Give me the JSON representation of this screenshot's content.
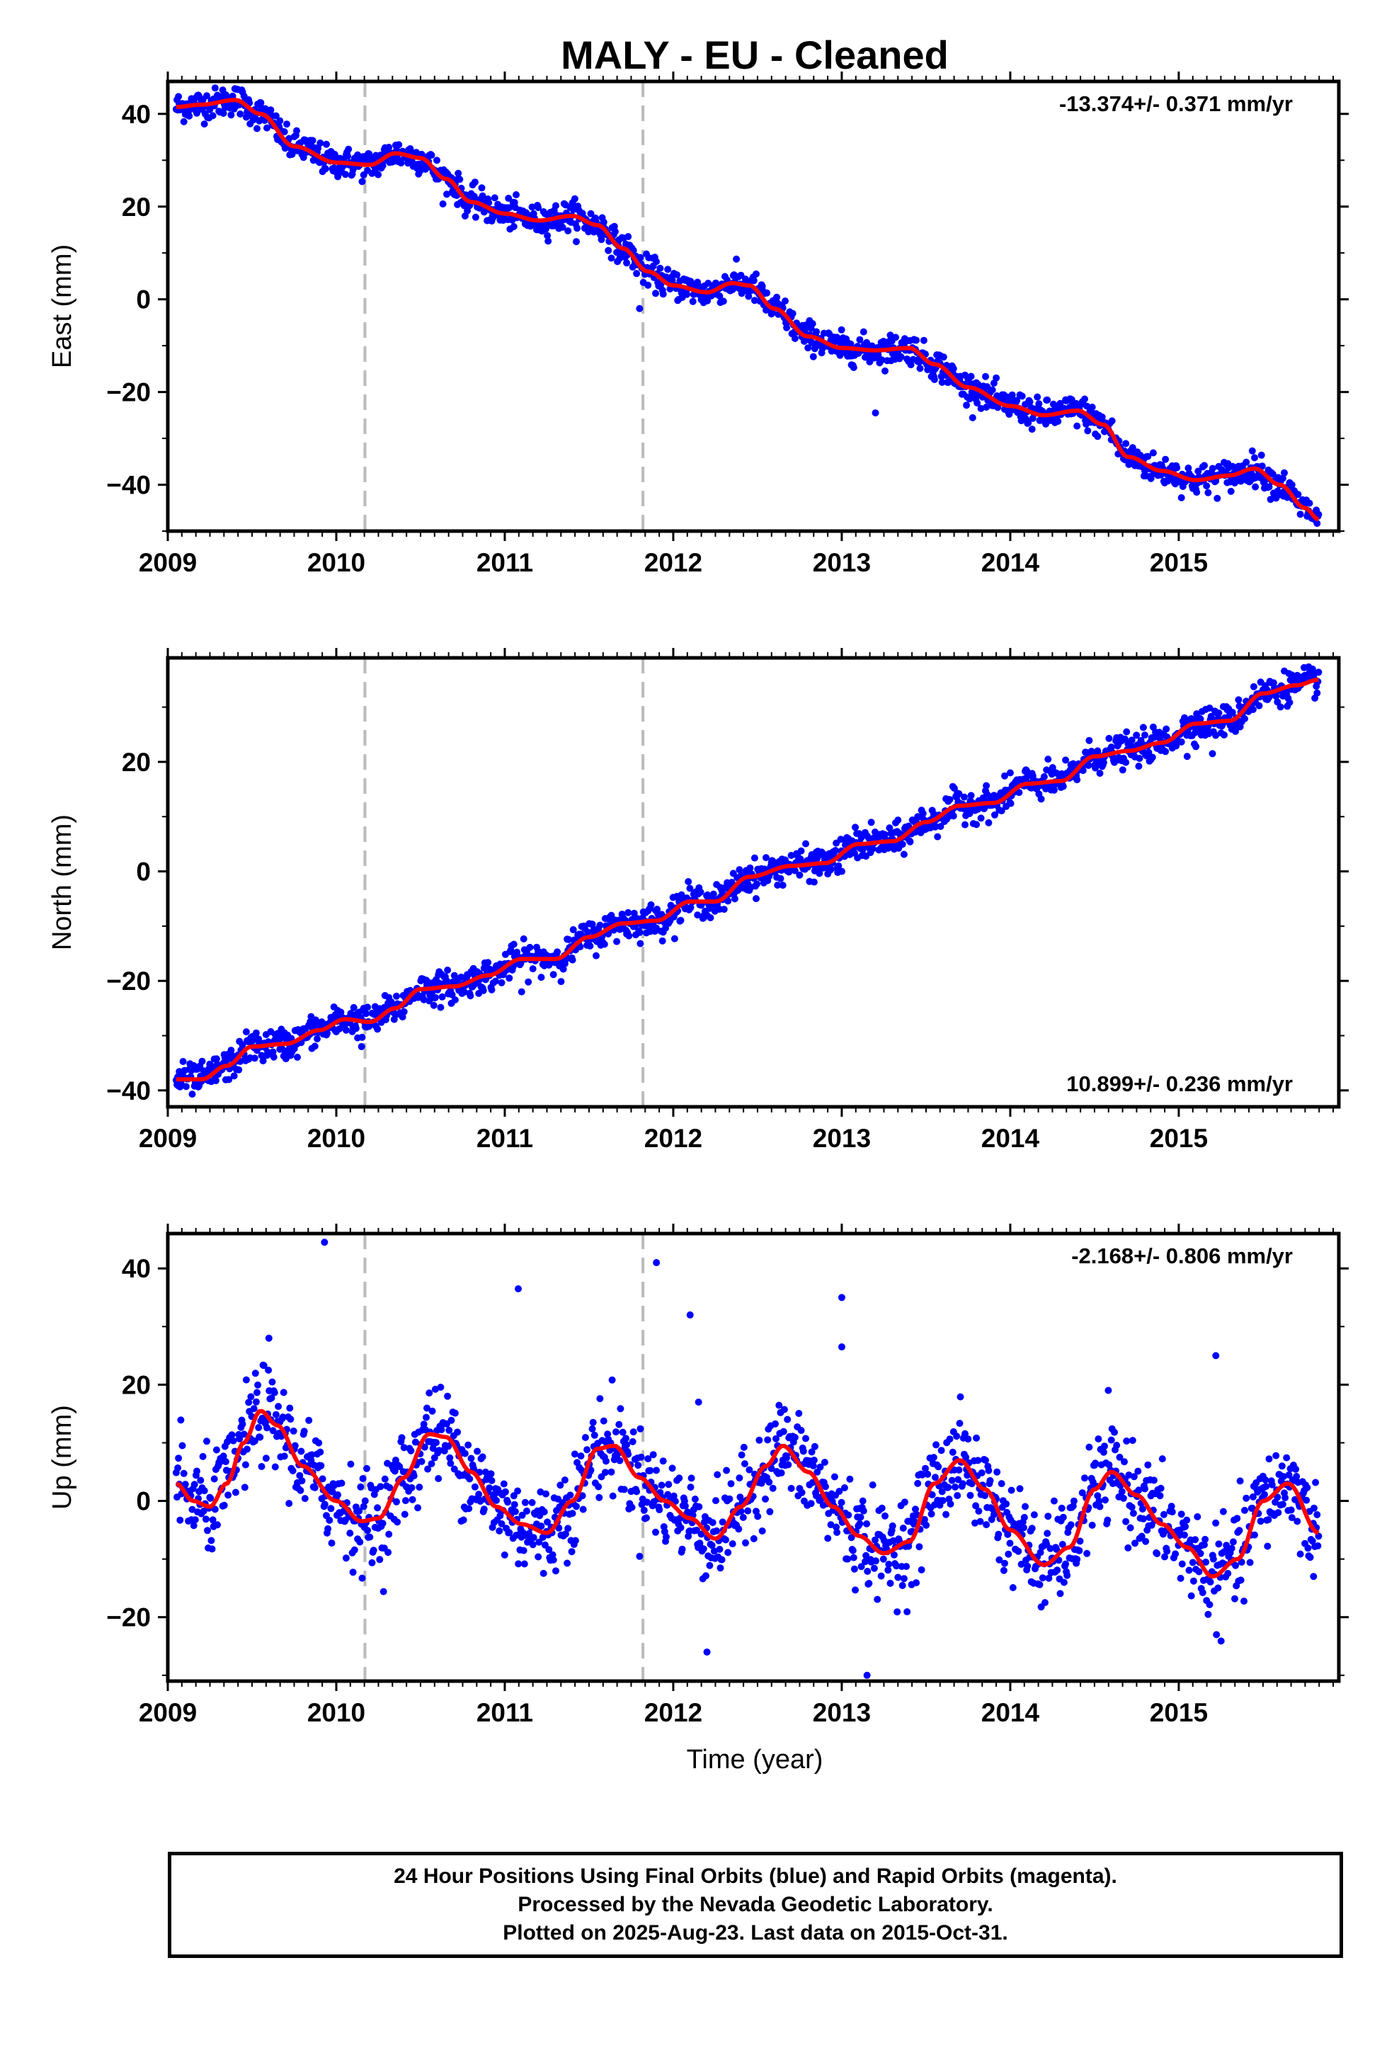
{
  "title": "MALY  - EU - Cleaned",
  "xlabel": "Time (year)",
  "x_tick_labels": [
    "2009",
    "2010",
    "2011",
    "2012",
    "2013",
    "2014",
    "2015"
  ],
  "footer": {
    "line1": "24 Hour Positions Using Final Orbits (blue) and Rapid Orbits (magenta).",
    "line2": "Processed by the Nevada Geodetic Laboratory.",
    "line3": "Plotted on 2025-Aug-23. Last data on 2015-Oct-31."
  },
  "colors": {
    "data_points": "#0000ff",
    "model_fit": "#ff0000",
    "dashed_lines": "#bbbbbb",
    "axes": "#000000"
  },
  "chart_data": [
    {
      "type": "scatter",
      "ylabel": "East (mm)",
      "rate_text": "-13.374+/- 0.371 mm/yr",
      "rate_position": "top-right",
      "xlim": [
        2009.0,
        2015.95
      ],
      "ylim": [
        -50,
        47
      ],
      "y_ticks": [
        -40,
        -20,
        0,
        20,
        40
      ],
      "y_tick_labels": [
        "−40",
        "−20",
        "0",
        "20",
        "40"
      ],
      "x_ticks": [
        2009,
        2010,
        2011,
        2012,
        2013,
        2014,
        2015
      ],
      "equipment_change_lines": [
        2010.17,
        2011.82
      ],
      "data_range": [
        2009.05,
        2015.83
      ],
      "noise_mm": 1.6,
      "outliers": [
        [
          2013.2,
          -24.5
        ],
        [
          2011.8,
          -2
        ]
      ],
      "fit": {
        "x": [
          2009.05,
          2009.2,
          2009.4,
          2009.55,
          2009.75,
          2010.0,
          2010.2,
          2010.35,
          2010.5,
          2010.65,
          2010.8,
          2011.0,
          2011.2,
          2011.4,
          2011.55,
          2011.7,
          2011.85,
          2012.0,
          2012.2,
          2012.35,
          2012.45,
          2012.6,
          2012.8,
          2013.0,
          2013.2,
          2013.4,
          2013.55,
          2013.75,
          2014.0,
          2014.2,
          2014.4,
          2014.55,
          2014.7,
          2014.9,
          2015.1,
          2015.3,
          2015.45,
          2015.6,
          2015.75,
          2015.83
        ],
        "y": [
          41.5,
          42,
          43,
          40,
          33,
          29.5,
          29,
          31.5,
          30.5,
          26,
          21,
          18.5,
          17,
          18,
          16,
          11,
          6,
          3,
          1.5,
          3.5,
          3,
          -2,
          -8,
          -10.5,
          -11,
          -10.5,
          -14,
          -19,
          -23,
          -25,
          -24,
          -27,
          -34,
          -37,
          -39,
          -38,
          -36.5,
          -40,
          -45,
          -47.5
        ]
      }
    },
    {
      "type": "scatter",
      "ylabel": "North (mm)",
      "rate_text": "10.899+/- 0.236 mm/yr",
      "rate_position": "bottom-right",
      "xlim": [
        2009.0,
        2015.95
      ],
      "ylim": [
        -43,
        39
      ],
      "y_ticks": [
        -40,
        -20,
        0,
        20
      ],
      "y_tick_labels": [
        "−40",
        "−20",
        "0",
        "20"
      ],
      "x_ticks": [
        2009,
        2010,
        2011,
        2012,
        2013,
        2014,
        2015
      ],
      "equipment_change_lines": [
        2010.17,
        2011.82
      ],
      "data_range": [
        2009.05,
        2015.83
      ],
      "noise_mm": 1.4,
      "outliers": [
        [
          2010.15,
          -32
        ],
        [
          2011.1,
          -22
        ],
        [
          2012.2,
          -8
        ],
        [
          2014.0,
          18
        ],
        [
          2015.05,
          21
        ],
        [
          2015.2,
          21.5
        ],
        [
          2013.0,
          0
        ]
      ],
      "fit": {
        "x": [
          2009.05,
          2009.2,
          2009.35,
          2009.5,
          2009.7,
          2009.9,
          2010.05,
          2010.2,
          2010.35,
          2010.5,
          2010.7,
          2010.9,
          2011.1,
          2011.3,
          2011.5,
          2011.7,
          2011.9,
          2012.1,
          2012.25,
          2012.45,
          2012.7,
          2012.9,
          2013.1,
          2013.3,
          2013.5,
          2013.7,
          2013.9,
          2014.1,
          2014.3,
          2014.5,
          2014.7,
          2014.9,
          2015.1,
          2015.3,
          2015.5,
          2015.7,
          2015.83
        ],
        "y": [
          -38,
          -38,
          -35.5,
          -32,
          -31.5,
          -29,
          -27,
          -27.5,
          -25,
          -21.5,
          -21,
          -19,
          -16,
          -16,
          -12,
          -9.5,
          -9,
          -5.5,
          -5.5,
          -1,
          1,
          1.5,
          5,
          5.5,
          9,
          12,
          12.5,
          16,
          16.5,
          21,
          22,
          23.5,
          27,
          27.5,
          32.5,
          34,
          35
        ]
      }
    },
    {
      "type": "scatter",
      "ylabel": "Up (mm)",
      "rate_text": "-2.168+/- 0.806 mm/yr",
      "rate_position": "top-right",
      "xlim": [
        2009.0,
        2015.95
      ],
      "ylim": [
        -31,
        46
      ],
      "y_ticks": [
        -20,
        0,
        20,
        40
      ],
      "y_tick_labels": [
        "−20",
        "0",
        "20",
        "40"
      ],
      "x_ticks": [
        2009,
        2010,
        2011,
        2012,
        2013,
        2014,
        2015
      ],
      "equipment_change_lines": [
        2010.17,
        2011.82
      ],
      "data_range": [
        2009.05,
        2015.83
      ],
      "noise_mm": 4,
      "outliers": [
        [
          2009.93,
          44.5
        ],
        [
          2011.08,
          36.5
        ],
        [
          2011.9,
          41
        ],
        [
          2012.1,
          32
        ],
        [
          2012.15,
          17
        ],
        [
          2012.2,
          -26
        ],
        [
          2013.0,
          35
        ],
        [
          2013.0,
          26.5
        ],
        [
          2013.15,
          -30
        ],
        [
          2015.22,
          25
        ],
        [
          2015.8,
          -13
        ],
        [
          2009.6,
          28
        ]
      ],
      "fit": {
        "x": [
          2009.05,
          2009.15,
          2009.25,
          2009.35,
          2009.45,
          2009.55,
          2009.65,
          2009.8,
          2010.0,
          2010.15,
          2010.25,
          2010.4,
          2010.55,
          2010.65,
          2010.8,
          2010.95,
          2011.1,
          2011.25,
          2011.4,
          2011.55,
          2011.65,
          2011.8,
          2011.95,
          2012.1,
          2012.25,
          2012.4,
          2012.55,
          2012.65,
          2012.8,
          2012.95,
          2013.1,
          2013.25,
          2013.4,
          2013.55,
          2013.7,
          2013.85,
          2014.0,
          2014.2,
          2014.35,
          2014.5,
          2014.6,
          2014.75,
          2014.9,
          2015.05,
          2015.2,
          2015.35,
          2015.5,
          2015.65,
          2015.83
        ],
        "y": [
          3,
          0,
          -1,
          3,
          10,
          15.5,
          13,
          6,
          0,
          -3.5,
          -3,
          4,
          11.5,
          11,
          5,
          -1,
          -4,
          -5.5,
          0,
          9,
          9.5,
          4,
          0,
          -3,
          -6.5,
          -1,
          6,
          9.5,
          5,
          -1,
          -6,
          -9,
          -7,
          3,
          7,
          2,
          -5,
          -11,
          -8,
          2,
          5,
          1,
          -4,
          -8,
          -13,
          -10,
          0,
          3,
          -5.5
        ]
      }
    }
  ]
}
